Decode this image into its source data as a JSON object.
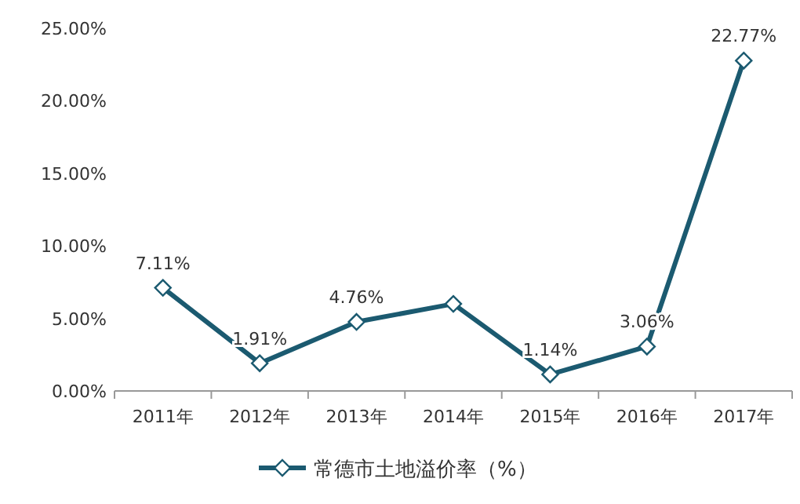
{
  "chart_data": {
    "type": "line",
    "categories": [
      "2011年",
      "2012年",
      "2013年",
      "2014年",
      "2015年",
      "2016年",
      "2017年"
    ],
    "series": [
      {
        "name": "常德市土地溢价率（%）",
        "color": "#1b5a70",
        "values": [
          7.11,
          1.91,
          4.76,
          6.0,
          1.14,
          3.06,
          22.77
        ],
        "value_labels": [
          "7.11%",
          "1.91%",
          "4.76%",
          null,
          "1.14%",
          "3.06%",
          "22.77%"
        ]
      }
    ],
    "ylim": [
      0,
      25
    ],
    "yticks": [
      {
        "value": 0,
        "label": "0.00%"
      },
      {
        "value": 5,
        "label": "5.00%"
      },
      {
        "value": 10,
        "label": "10.00%"
      },
      {
        "value": 15,
        "label": "15.00%"
      },
      {
        "value": 20,
        "label": "20.00%"
      },
      {
        "value": 25,
        "label": "25.00%"
      }
    ],
    "marker": "diamond",
    "legend": "bottom"
  }
}
